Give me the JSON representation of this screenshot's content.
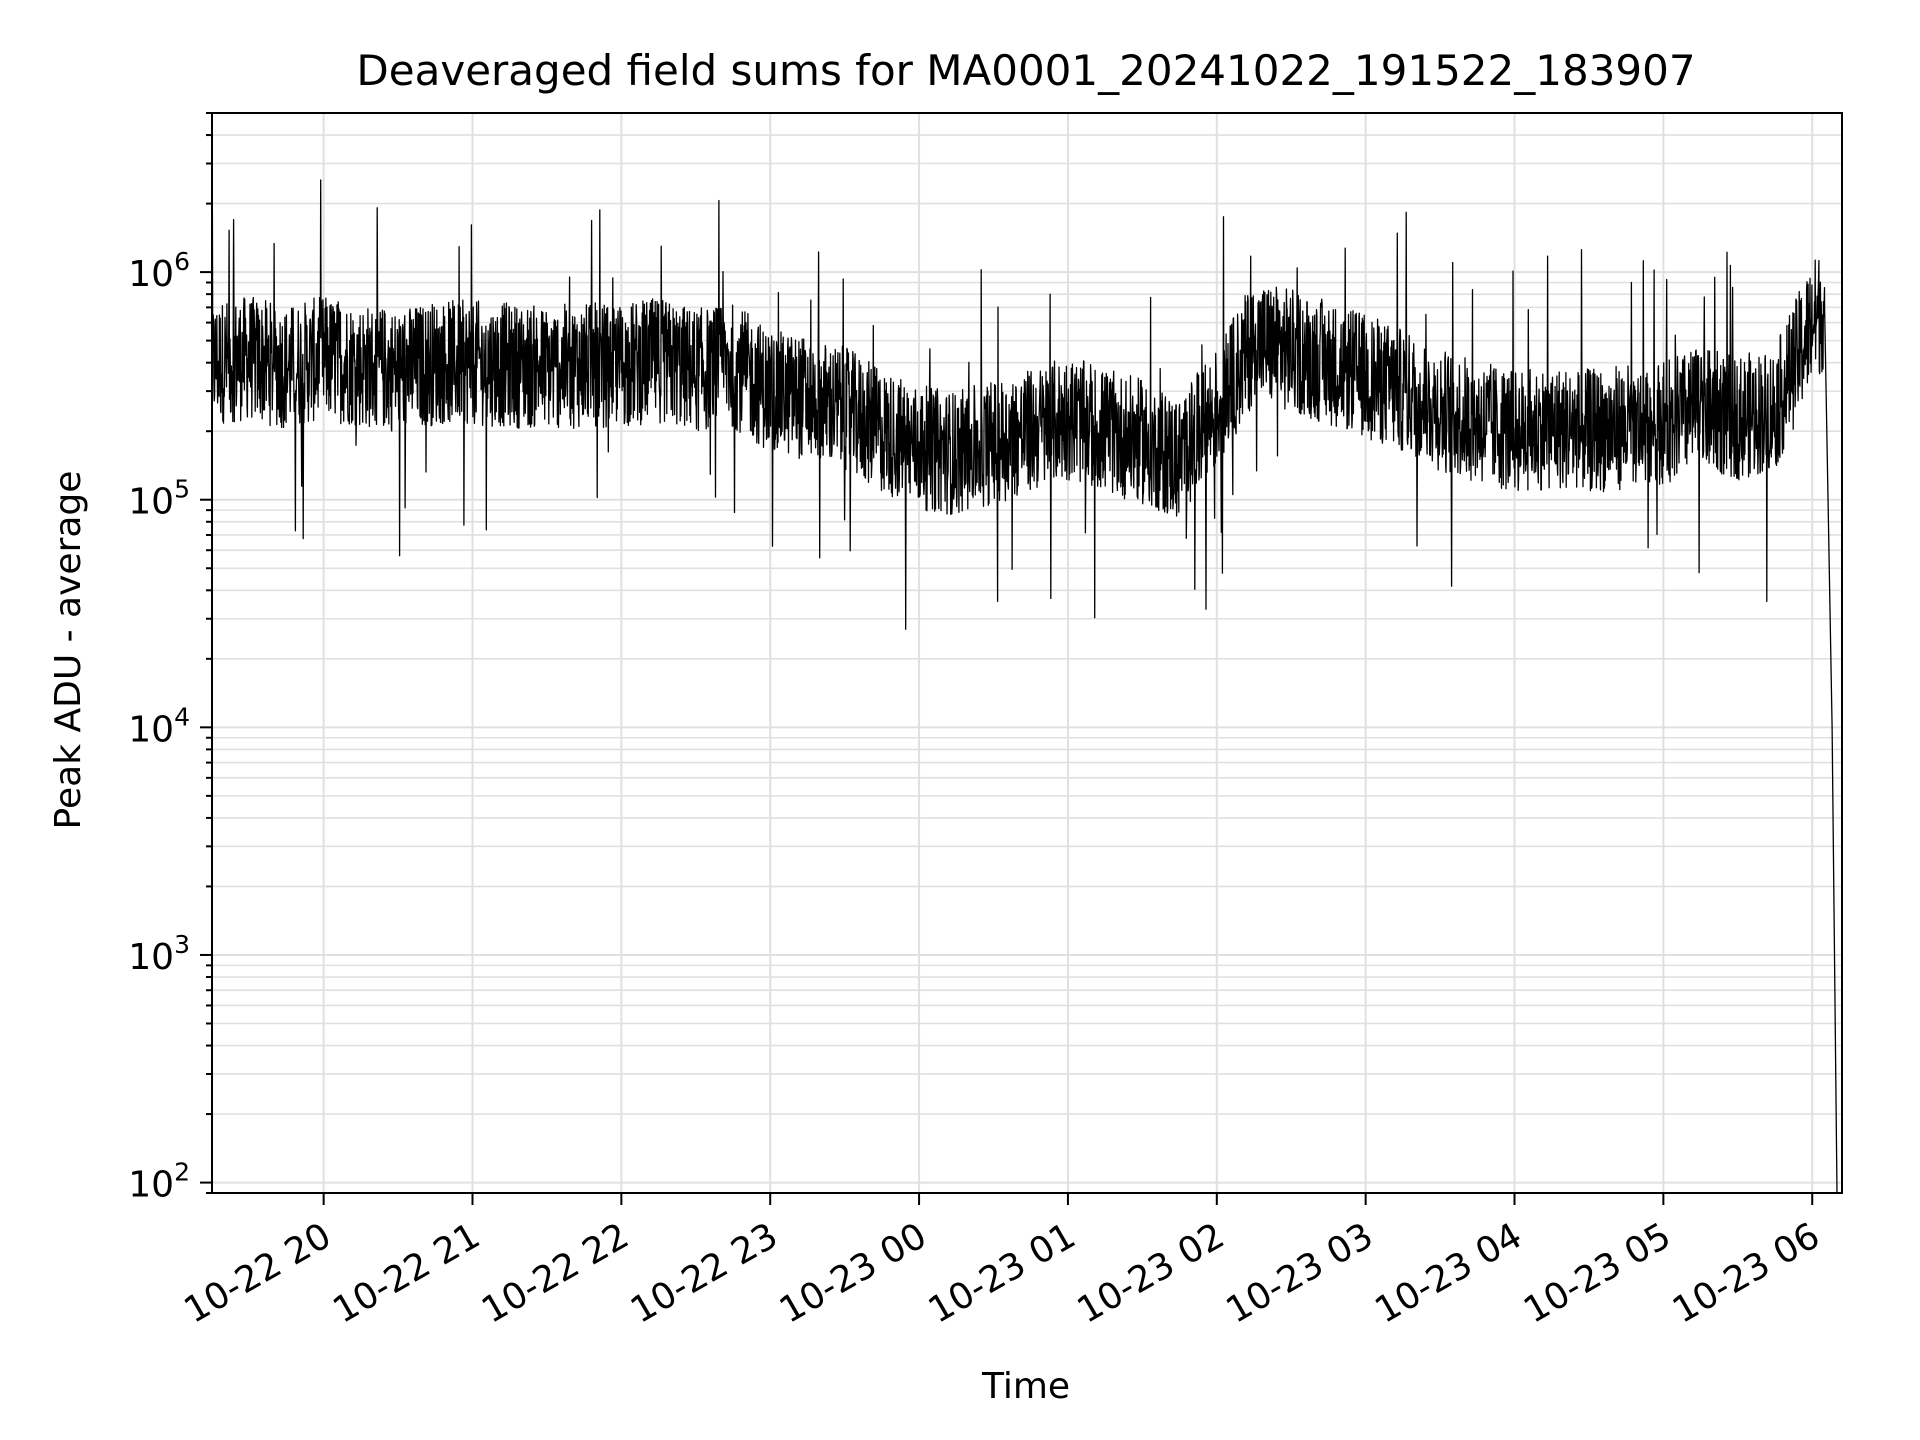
{
  "chart_data": {
    "type": "line",
    "title": "Deaveraged field sums for MA0001_20241022_191522_183907",
    "xlabel": "Time",
    "ylabel": "Peak ADU - average",
    "yscale": "log",
    "ylim": [
      90,
      5000000
    ],
    "xlim": [
      "2024-10-22 19:15",
      "2024-10-23 06:12"
    ],
    "grid": true,
    "line_color": "#000000",
    "grid_color": "#e0e0e0",
    "y_ticks": [
      {
        "value": 100,
        "base": "10",
        "exp": "2"
      },
      {
        "value": 1000,
        "base": "10",
        "exp": "3"
      },
      {
        "value": 10000,
        "base": "10",
        "exp": "4"
      },
      {
        "value": 100000,
        "base": "10",
        "exp": "5"
      },
      {
        "value": 1000000,
        "base": "10",
        "exp": "6"
      }
    ],
    "x_ticks": [
      {
        "value": "2024-10-22 20:00",
        "label": "10-22 20"
      },
      {
        "value": "2024-10-22 21:00",
        "label": "10-22 21"
      },
      {
        "value": "2024-10-22 22:00",
        "label": "10-22 22"
      },
      {
        "value": "2024-10-22 23:00",
        "label": "10-22 23"
      },
      {
        "value": "2024-10-23 00:00",
        "label": "10-23 00"
      },
      {
        "value": "2024-10-23 01:00",
        "label": "10-23 01"
      },
      {
        "value": "2024-10-23 02:00",
        "label": "10-23 02"
      },
      {
        "value": "2024-10-23 03:00",
        "label": "10-23 03"
      },
      {
        "value": "2024-10-23 04:00",
        "label": "10-23 04"
      },
      {
        "value": "2024-10-23 05:00",
        "label": "10-23 05"
      },
      {
        "value": "2024-10-23 06:00",
        "label": "10-23 06"
      }
    ],
    "series": [
      {
        "x": [
          "2024-10-22 19:15",
          "2024-10-22 19:30",
          "2024-10-22 19:45",
          "2024-10-22 20:00",
          "2024-10-22 20:15",
          "2024-10-22 20:30",
          "2024-10-22 20:45",
          "2024-10-22 21:00",
          "2024-10-22 21:15",
          "2024-10-22 21:30",
          "2024-10-22 21:45",
          "2024-10-22 22:00",
          "2024-10-22 22:15",
          "2024-10-22 22:30",
          "2024-10-22 22:45",
          "2024-10-22 23:00",
          "2024-10-22 23:15",
          "2024-10-22 23:30",
          "2024-10-22 23:45",
          "2024-10-23 00:00",
          "2024-10-23 00:15",
          "2024-10-23 00:30",
          "2024-10-23 00:45",
          "2024-10-23 01:00",
          "2024-10-23 01:15",
          "2024-10-23 01:30",
          "2024-10-23 01:45",
          "2024-10-23 02:00",
          "2024-10-23 02:15",
          "2024-10-23 02:30",
          "2024-10-23 02:45",
          "2024-10-23 03:00",
          "2024-10-23 03:15",
          "2024-10-23 03:30",
          "2024-10-23 03:45",
          "2024-10-23 04:00",
          "2024-10-23 04:15",
          "2024-10-23 04:30",
          "2024-10-23 04:45",
          "2024-10-23 05:00",
          "2024-10-23 05:15",
          "2024-10-23 05:30",
          "2024-10-23 05:45",
          "2024-10-23 06:00",
          "2024-10-23 06:05",
          "2024-10-23 06:08",
          "2024-10-23 06:10"
        ],
        "y": [
          400000,
          420000,
          380000,
          420000,
          390000,
          370000,
          400000,
          400000,
          390000,
          380000,
          390000,
          390000,
          410000,
          370000,
          390000,
          300000,
          280000,
          250000,
          200000,
          170000,
          160000,
          180000,
          200000,
          230000,
          200000,
          180000,
          150000,
          250000,
          500000,
          450000,
          400000,
          350000,
          300000,
          250000,
          220000,
          200000,
          210000,
          200000,
          210000,
          220000,
          250000,
          230000,
          250000,
          600000,
          700000,
          10000,
          90
        ]
      }
    ]
  }
}
